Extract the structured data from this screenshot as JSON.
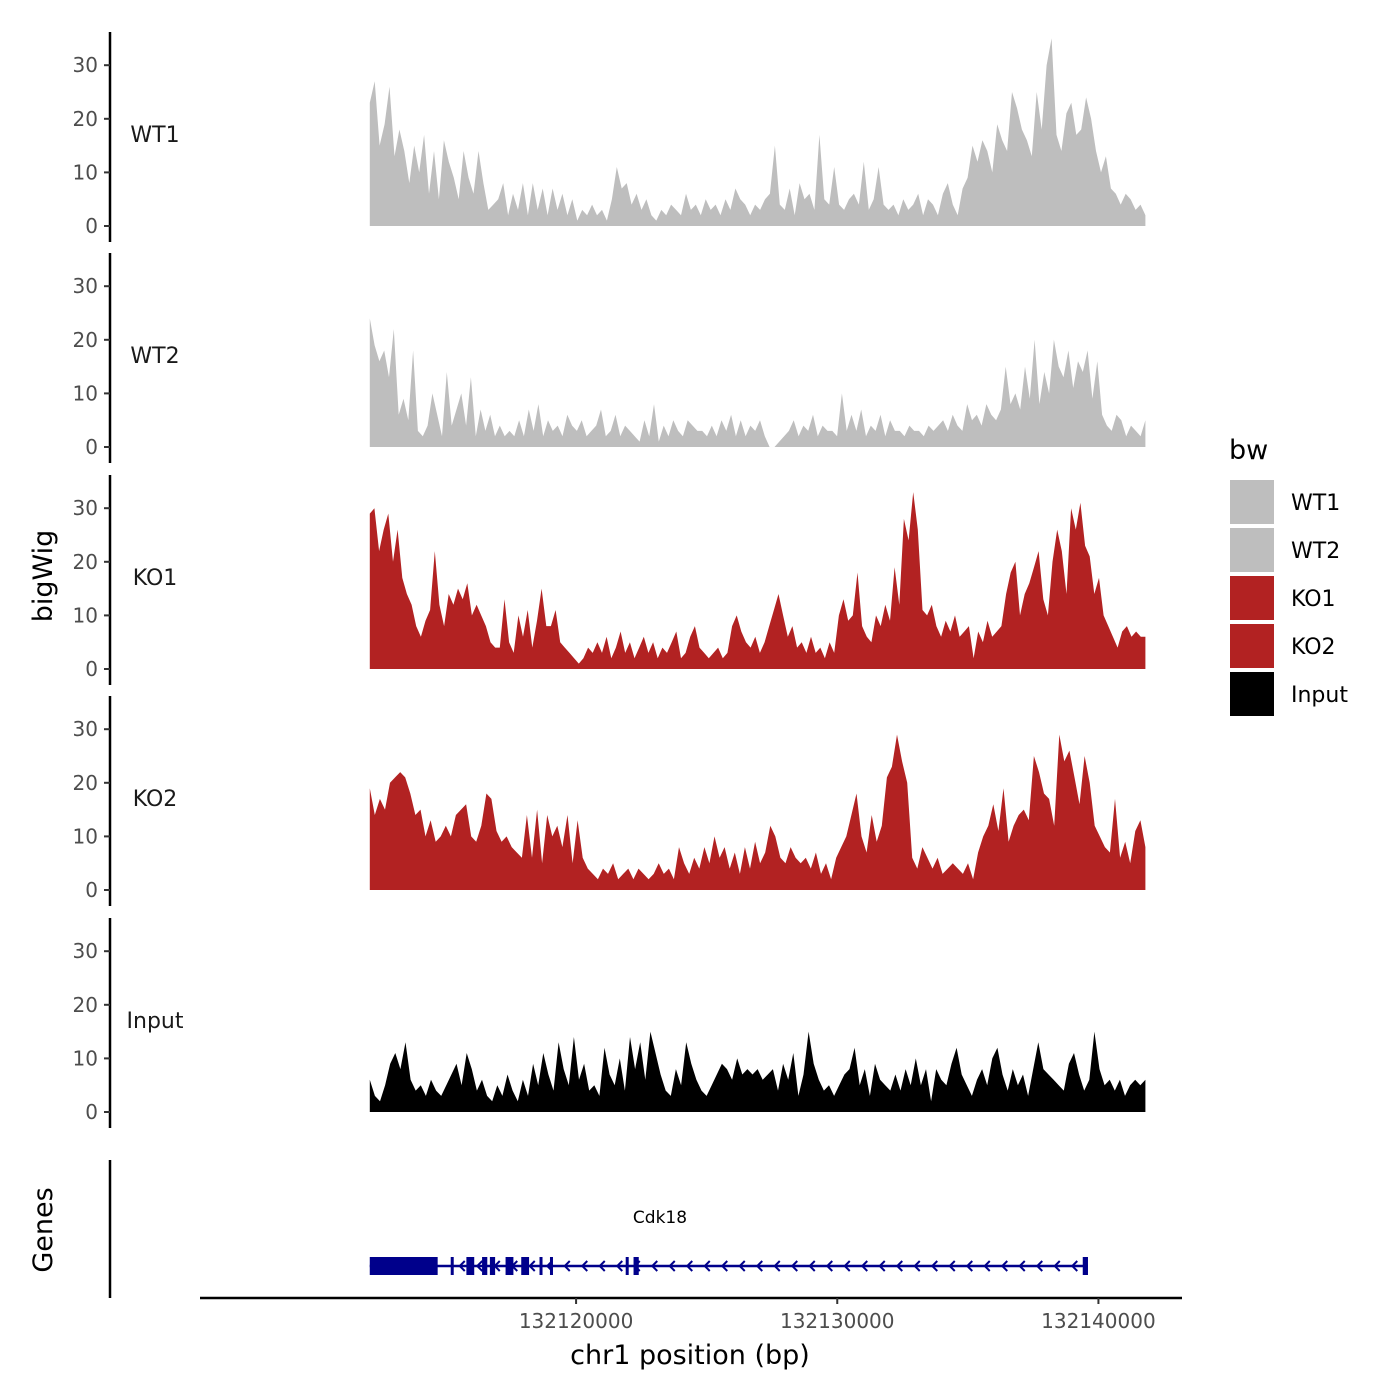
{
  "chart_data": {
    "type": "area",
    "title": "",
    "xlabel": "chr1 position (bp)",
    "ylabel": "bigWig",
    "genes_label": "Genes",
    "xlim": [
      132105600,
      132143200
    ],
    "ylim": [
      0,
      36
    ],
    "x_ticks": [
      132120000,
      132130000,
      132140000
    ],
    "x_tick_labels": [
      "132120000",
      "132130000",
      "132140000"
    ],
    "y_ticks": [
      0,
      10,
      20,
      30
    ],
    "y_tick_labels": [
      "0",
      "10",
      "20",
      "30"
    ],
    "x_start": 132112100,
    "x_step": 200,
    "legend": {
      "title": "bw",
      "placement": "right",
      "entries": [
        {
          "label": "WT1",
          "color": "#bebebe"
        },
        {
          "label": "WT2",
          "color": "#bebebe"
        },
        {
          "label": "KO1",
          "color": "#b22222"
        },
        {
          "label": "KO2",
          "color": "#b22222"
        },
        {
          "label": "Input",
          "color": "#000000"
        }
      ]
    },
    "series": [
      {
        "name": "WT1",
        "color": "#bebebe",
        "values": [
          23,
          27,
          15,
          19,
          26,
          13,
          18,
          14,
          8,
          15,
          10,
          17,
          6,
          14,
          5,
          16,
          12,
          9,
          5,
          14,
          9,
          6,
          14,
          8,
          3,
          4,
          5,
          8,
          2,
          6,
          3,
          8,
          2,
          8,
          3,
          7,
          2,
          7,
          3,
          6,
          2,
          5,
          1,
          3,
          2,
          4,
          2,
          3,
          1,
          5,
          11,
          7,
          8,
          4,
          6,
          3,
          5,
          2,
          1,
          3,
          2,
          4,
          3,
          2,
          6,
          3,
          4,
          2,
          5,
          3,
          4,
          2,
          5,
          3,
          7,
          5,
          4,
          2,
          4,
          3,
          5,
          6,
          15,
          4,
          3,
          7,
          2,
          8,
          5,
          6,
          3,
          17,
          5,
          4,
          11,
          4,
          3,
          5,
          6,
          4,
          12,
          3,
          5,
          11,
          4,
          3,
          4,
          2,
          5,
          3,
          4,
          6,
          2,
          5,
          4,
          2,
          6,
          8,
          4,
          2,
          7,
          9,
          15,
          12,
          16,
          14,
          10,
          19,
          16,
          14,
          25,
          22,
          18,
          16,
          13,
          25,
          18,
          30,
          35,
          17,
          14,
          21,
          23,
          17,
          18,
          24,
          20,
          14,
          10,
          13,
          7,
          6,
          4,
          6,
          5,
          3,
          4,
          2
        ],
        "smooth": true
      },
      {
        "name": "WT2",
        "color": "#bebebe",
        "values": [
          24,
          19,
          16,
          18,
          13,
          22,
          6,
          9,
          5,
          18,
          3,
          2,
          4,
          10,
          6,
          2,
          14,
          4,
          7,
          10,
          4,
          13,
          2,
          7,
          3,
          6,
          2,
          4,
          2,
          3,
          2,
          5,
          2,
          7,
          3,
          8,
          2,
          5,
          3,
          4,
          2,
          6,
          4,
          3,
          5,
          2,
          3,
          4,
          7,
          2,
          3,
          6,
          2,
          4,
          3,
          2,
          1,
          5,
          2,
          8,
          1,
          4,
          2,
          5,
          3,
          2,
          5,
          4,
          3,
          3,
          2,
          4,
          2,
          5,
          3,
          6,
          2,
          5,
          2,
          4,
          3,
          5,
          2,
          0,
          0,
          1,
          2,
          3,
          5,
          2,
          4,
          3,
          6,
          2,
          4,
          3,
          3,
          2,
          10,
          3,
          6,
          3,
          7,
          2,
          4,
          3,
          6,
          2,
          5,
          3,
          3,
          2,
          4,
          3,
          3,
          2,
          4,
          3,
          4,
          5,
          3,
          6,
          4,
          3,
          8,
          5,
          6,
          4,
          8,
          6,
          5,
          7,
          15,
          8,
          10,
          7,
          15,
          9,
          20,
          8,
          14,
          10,
          20,
          15,
          13,
          18,
          11,
          16,
          14,
          18,
          9,
          16,
          6,
          4,
          3,
          6,
          5,
          2,
          4,
          3,
          2,
          5
        ],
        "smooth": true
      },
      {
        "name": "KO1",
        "color": "#b22222",
        "values": [
          29,
          30,
          22,
          26,
          29,
          20,
          26,
          17,
          14,
          12,
          8,
          6,
          9,
          11,
          22,
          12,
          8,
          14,
          12,
          15,
          13,
          16,
          10,
          12,
          10,
          8,
          5,
          4,
          4,
          13,
          5,
          3,
          10,
          6,
          11,
          4,
          9,
          15,
          8,
          8,
          11,
          5,
          4,
          3,
          2,
          1,
          2,
          4,
          3,
          5,
          3,
          6,
          2,
          4,
          7,
          3,
          5,
          2,
          4,
          6,
          3,
          5,
          2,
          4,
          3,
          5,
          7,
          2,
          3,
          6,
          8,
          4,
          3,
          2,
          3,
          4,
          2,
          3,
          8,
          10,
          7,
          5,
          4,
          6,
          3,
          5,
          8,
          11,
          14,
          10,
          6,
          8,
          4,
          5,
          3,
          6,
          3,
          4,
          2,
          5,
          3,
          10,
          13,
          9,
          10,
          18,
          8,
          6,
          5,
          10,
          8,
          12,
          9,
          19,
          12,
          28,
          24,
          33,
          26,
          11,
          10,
          12,
          8,
          6,
          9,
          7,
          10,
          6,
          7,
          8,
          2,
          7,
          5,
          9,
          6,
          7,
          8,
          14,
          18,
          20,
          10,
          14,
          16,
          19,
          22,
          13,
          10,
          20,
          26,
          22,
          14,
          30,
          26,
          31,
          23,
          21,
          14,
          17,
          10,
          8,
          6,
          4,
          7,
          8,
          6,
          7,
          6,
          6
        ],
        "smooth": true
      },
      {
        "name": "KO2",
        "color": "#b22222",
        "values": [
          19,
          14,
          17,
          15,
          20,
          21,
          22,
          21,
          18,
          14,
          15,
          10,
          13,
          9,
          10,
          12,
          10,
          14,
          15,
          16,
          10,
          9,
          12,
          18,
          17,
          11,
          9,
          10,
          8,
          7,
          6,
          14,
          6,
          15,
          5,
          14,
          10,
          12,
          8,
          14,
          5,
          13,
          6,
          4,
          3,
          2,
          4,
          3,
          5,
          2,
          3,
          4,
          2,
          4,
          3,
          2,
          3,
          5,
          3,
          4,
          2,
          8,
          5,
          3,
          6,
          4,
          8,
          5,
          10,
          6,
          8,
          4,
          7,
          3,
          8,
          4,
          9,
          5,
          7,
          12,
          10,
          6,
          5,
          8,
          6,
          5,
          6,
          4,
          7,
          3,
          5,
          2,
          6,
          8,
          10,
          14,
          18,
          10,
          7,
          14,
          9,
          12,
          21,
          23,
          29,
          24,
          20,
          6,
          4,
          8,
          6,
          4,
          6,
          3,
          4,
          5,
          4,
          3,
          5,
          2,
          7,
          10,
          12,
          16,
          11,
          19,
          9,
          12,
          14,
          15,
          13,
          25,
          22,
          18,
          17,
          12,
          29,
          24,
          26,
          21,
          16,
          25,
          20,
          12,
          10,
          8,
          7,
          17,
          6,
          9,
          5,
          11,
          13,
          8
        ]
      },
      {
        "name": "Input",
        "color": "#000000",
        "values": [
          6,
          3,
          2,
          5,
          9,
          11,
          8,
          13,
          6,
          4,
          5,
          3,
          6,
          4,
          3,
          5,
          7,
          9,
          5,
          11,
          8,
          4,
          6,
          3,
          2,
          5,
          3,
          7,
          4,
          2,
          6,
          3,
          9,
          5,
          11,
          7,
          4,
          13,
          8,
          5,
          14,
          6,
          9,
          4,
          5,
          3,
          12,
          7,
          5,
          10,
          4,
          14,
          8,
          13,
          6,
          15,
          11,
          7,
          4,
          3,
          8,
          5,
          13,
          9,
          6,
          4,
          3,
          5,
          7,
          9,
          8,
          6,
          10,
          7,
          8,
          7,
          8,
          6,
          7,
          8,
          4,
          9,
          6,
          11,
          3,
          7,
          15,
          9,
          6,
          4,
          5,
          3,
          5,
          7,
          8,
          12,
          5,
          8,
          3,
          9,
          6,
          5,
          4,
          7,
          4,
          8,
          5,
          10,
          5,
          8,
          2,
          8,
          6,
          5,
          9,
          12,
          7,
          5,
          3,
          6,
          8,
          5,
          10,
          12,
          7,
          4,
          8,
          5,
          7,
          3,
          8,
          13,
          8,
          7,
          6,
          5,
          4,
          9,
          11,
          7,
          4,
          6,
          15,
          8,
          5,
          6,
          4,
          6,
          3,
          5,
          6,
          5,
          6
        ]
      }
    ],
    "gene": {
      "name": "Cdk18",
      "strand": "-",
      "start": 132112100,
      "end": 132139600,
      "exons": [
        [
          132112100,
          132114700
        ],
        [
          132115200,
          132115300
        ],
        [
          132115800,
          132116100
        ],
        [
          132116400,
          132116600
        ],
        [
          132116700,
          132116900
        ],
        [
          132117300,
          132117600
        ],
        [
          132117900,
          132118200
        ],
        [
          132118600,
          132118700
        ],
        [
          132119000,
          132119100
        ],
        [
          132121900,
          132122000
        ],
        [
          132122200,
          132122400
        ],
        [
          132139400,
          132139600
        ]
      ]
    }
  }
}
